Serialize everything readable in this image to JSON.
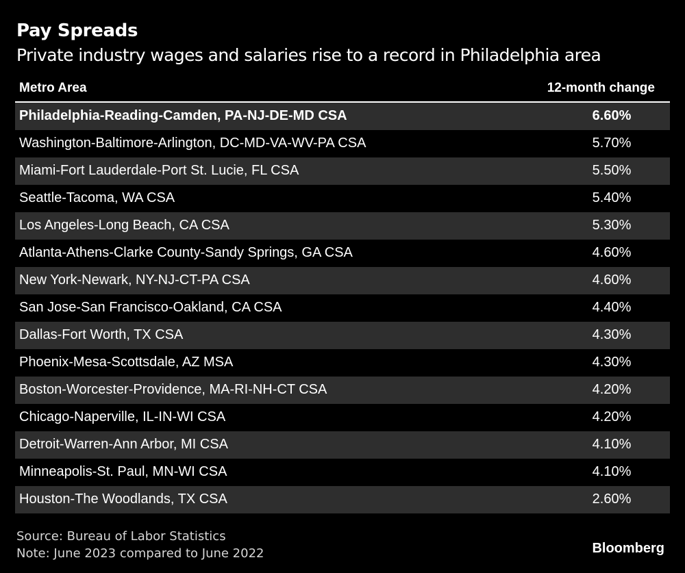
{
  "chart_data": {
    "type": "table",
    "title": "Pay Spreads",
    "subtitle": "Private industry wages and salaries rise to a record in Philadelphia area",
    "columns": [
      "Metro Area",
      "12-month change"
    ],
    "rows": [
      {
        "metro": "Philadelphia-Reading-Camden, PA-NJ-DE-MD CSA",
        "change": "6.60%",
        "highlight": true
      },
      {
        "metro": "Washington-Baltimore-Arlington, DC-MD-VA-WV-PA CSA",
        "change": "5.70%",
        "highlight": false
      },
      {
        "metro": "Miami-Fort Lauderdale-Port St. Lucie, FL CSA",
        "change": "5.50%",
        "highlight": false
      },
      {
        "metro": "Seattle-Tacoma, WA CSA",
        "change": "5.40%",
        "highlight": false
      },
      {
        "metro": "Los Angeles-Long Beach, CA CSA",
        "change": "5.30%",
        "highlight": false
      },
      {
        "metro": "Atlanta-Athens-Clarke County-Sandy Springs, GA CSA",
        "change": "4.60%",
        "highlight": false
      },
      {
        "metro": "New York-Newark, NY-NJ-CT-PA CSA",
        "change": "4.60%",
        "highlight": false
      },
      {
        "metro": "San Jose-San Francisco-Oakland, CA CSA",
        "change": "4.40%",
        "highlight": false
      },
      {
        "metro": "Dallas-Fort Worth, TX CSA",
        "change": "4.30%",
        "highlight": false
      },
      {
        "metro": "Phoenix-Mesa-Scottsdale, AZ MSA",
        "change": "4.30%",
        "highlight": false
      },
      {
        "metro": "Boston-Worcester-Providence, MA-RI-NH-CT CSA",
        "change": "4.20%",
        "highlight": false
      },
      {
        "metro": "Chicago-Naperville, IL-IN-WI CSA",
        "change": "4.20%",
        "highlight": false
      },
      {
        "metro": "Detroit-Warren-Ann Arbor, MI CSA",
        "change": "4.10%",
        "highlight": false
      },
      {
        "metro": "Minneapolis-St. Paul, MN-WI CSA",
        "change": "4.10%",
        "highlight": false
      },
      {
        "metro": "Houston-The Woodlands, TX CSA",
        "change": "2.60%",
        "highlight": false
      }
    ],
    "source": "Source: Bureau of Labor Statistics",
    "note": "Note: June 2023 compared to June 2022"
  },
  "brand": "Bloomberg",
  "colors": {
    "background": "#000000",
    "text": "#ffffff",
    "row_shade": "#2e2e2e",
    "footer_text": "#d6d6d6"
  }
}
